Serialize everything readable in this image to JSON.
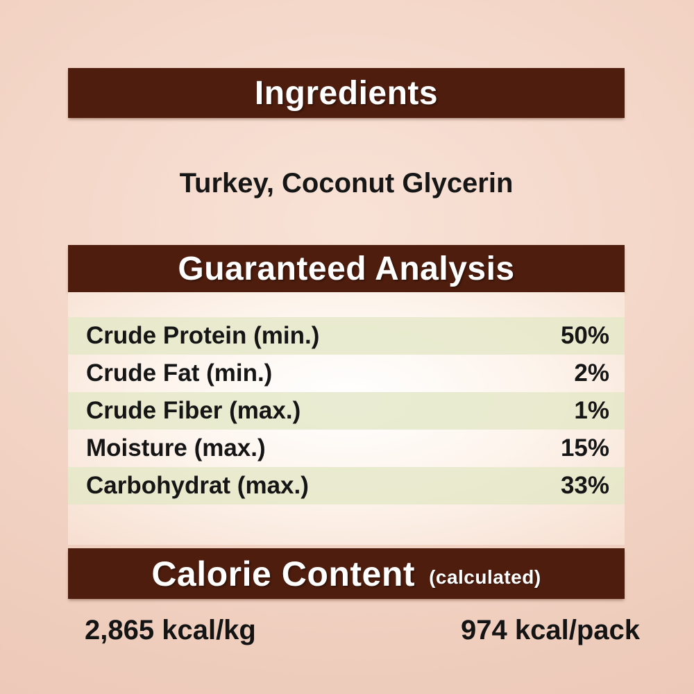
{
  "colors": {
    "header_bar": "#4e1d0e",
    "background": "#f2d3c4",
    "row_highlight": "#e9ecd2",
    "header_text": "#ffffff",
    "body_text": "#151515"
  },
  "ingredients": {
    "title": "Ingredients",
    "value": "Turkey, Coconut Glycerin"
  },
  "guaranteed_analysis": {
    "title": "Guaranteed Analysis",
    "rows": [
      {
        "label": "Crude Protein (min.)",
        "value": "50%"
      },
      {
        "label": "Crude Fat (min.)",
        "value": "2%"
      },
      {
        "label": "Crude Fiber (max.)",
        "value": "1%"
      },
      {
        "label": "Moisture (max.)",
        "value": "15%"
      },
      {
        "label": "Carbohydrat (max.)",
        "value": "33%"
      }
    ]
  },
  "calorie_content": {
    "title": "Calorie Content",
    "subtitle": "(calculated)",
    "per_kg": "2,865 kcal/kg",
    "per_pack": "974 kcal/pack"
  }
}
